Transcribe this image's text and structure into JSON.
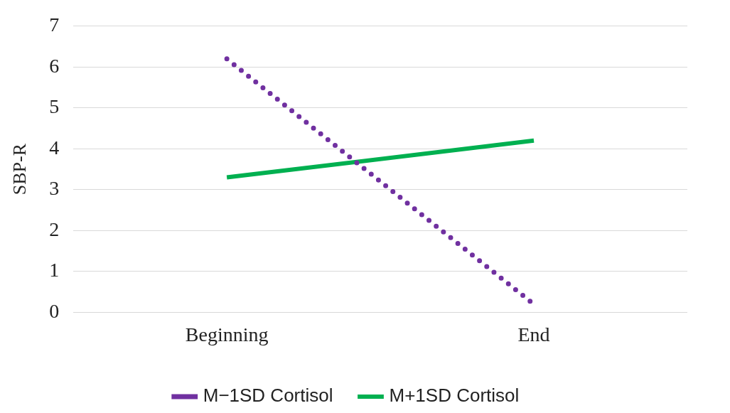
{
  "chart_data": {
    "type": "line",
    "ylabel": "SBP-R",
    "categories": [
      "Beginning",
      "End"
    ],
    "series": [
      {
        "name": "M−1SD Cortisol",
        "color": "#7030a0",
        "values": [
          6.2,
          0.2
        ],
        "line_style": "dotted"
      },
      {
        "name": "M+1SD Cortisol",
        "color": "#00b050",
        "values": [
          3.3,
          4.2
        ],
        "line_style": "solid"
      }
    ],
    "ylim": [
      0,
      7
    ],
    "yticks": [
      0,
      1,
      2,
      3,
      4,
      5,
      6,
      7
    ],
    "grid": "y",
    "legend": "bottom",
    "marker": "none"
  }
}
